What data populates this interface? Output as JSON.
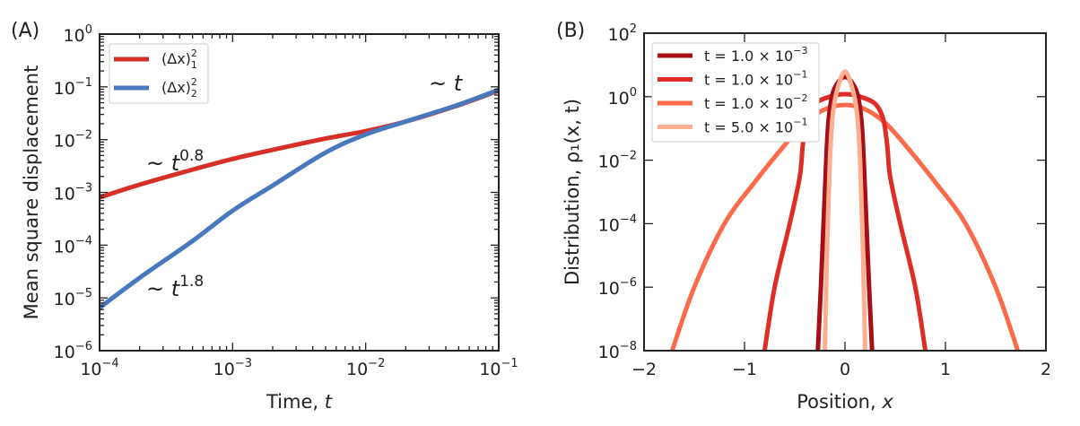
{
  "chart_data": [
    {
      "type": "line",
      "panel_label": "(A)",
      "xlabel": "Time, t",
      "ylabel": "Mean square displacement",
      "xscale": "log",
      "yscale": "log",
      "xlim": [
        0.0001,
        0.1
      ],
      "ylim": [
        1e-06,
        1
      ],
      "grid": false,
      "legend_position": "top-left",
      "x_ticks": [
        {
          "base": "10",
          "exp": "−4",
          "v": 0.0001
        },
        {
          "base": "10",
          "exp": "−3",
          "v": 0.001
        },
        {
          "base": "10",
          "exp": "−2",
          "v": 0.01
        },
        {
          "base": "10",
          "exp": "−1",
          "v": 0.1
        }
      ],
      "y_ticks": [
        {
          "base": "10",
          "exp": "0",
          "v": 1
        },
        {
          "base": "10",
          "exp": "−1",
          "v": 0.1
        },
        {
          "base": "10",
          "exp": "−2",
          "v": 0.01
        },
        {
          "base": "10",
          "exp": "−3",
          "v": 0.001
        },
        {
          "base": "10",
          "exp": "−4",
          "v": 0.0001
        },
        {
          "base": "10",
          "exp": "−5",
          "v": 1e-05
        },
        {
          "base": "10",
          "exp": "−6",
          "v": 1e-06
        }
      ],
      "x": [
        0.0001,
        0.0002,
        0.0005,
        0.001,
        0.002,
        0.005,
        0.01,
        0.02,
        0.05,
        0.1
      ],
      "series": [
        {
          "name": "(Δx)",
          "sub": "1",
          "sup": "2",
          "color": "#d62f27",
          "values": [
            0.0008,
            0.0014,
            0.0027,
            0.0043,
            0.0064,
            0.0105,
            0.0145,
            0.022,
            0.045,
            0.085
          ]
        },
        {
          "name": "(Δx)",
          "sub": "2",
          "sup": "2",
          "color": "#4a78bd",
          "values": [
            6.5e-06,
            2.4e-05,
            0.00012,
            0.00045,
            0.00135,
            0.0057,
            0.0125,
            0.022,
            0.046,
            0.088
          ]
        }
      ],
      "annotations": [
        {
          "text": "~ t",
          "sup": "0.8"
        },
        {
          "text": "~ t",
          "sup": "1.8"
        },
        {
          "text": "~ t",
          "sup": ""
        }
      ]
    },
    {
      "type": "line",
      "panel_label": "(B)",
      "xlabel": "Position, x",
      "ylabel": "Distribution, ρ₁(x, t)",
      "xscale": "linear",
      "yscale": "log",
      "xlim": [
        -2,
        2
      ],
      "ylim": [
        1e-08,
        100
      ],
      "grid": false,
      "legend_position": "top-left",
      "x_ticks": [
        {
          "label": "−2",
          "v": -2
        },
        {
          "label": "−1",
          "v": -1
        },
        {
          "label": "0",
          "v": 0
        },
        {
          "label": "1",
          "v": 1
        },
        {
          "label": "2",
          "v": 2
        }
      ],
      "y_ticks": [
        {
          "base": "10",
          "exp": "2",
          "v": 100
        },
        {
          "base": "10",
          "exp": "0",
          "v": 1
        },
        {
          "base": "10",
          "exp": "−2",
          "v": 0.01
        },
        {
          "base": "10",
          "exp": "−4",
          "v": 0.0001
        },
        {
          "base": "10",
          "exp": "−6",
          "v": 1e-06
        },
        {
          "base": "10",
          "exp": "−8",
          "v": 1e-08
        }
      ],
      "series": [
        {
          "name": "t = 1.0 × 10",
          "exp": "−3",
          "color": "#a50f15",
          "x": [
            -0.27,
            -0.24,
            -0.2,
            -0.17,
            -0.13,
            -0.07,
            0,
            0.07,
            0.13,
            0.17,
            0.2,
            0.24,
            0.27
          ],
          "values": [
            1e-08,
            1e-06,
            0.001,
            0.1,
            1,
            2.8,
            4.2,
            2.8,
            1,
            0.1,
            0.001,
            1e-06,
            1e-08
          ]
        },
        {
          "name": "t = 1.0 × 10",
          "exp": "−1",
          "color": "#de2d26",
          "x": [
            -0.8,
            -0.7,
            -0.55,
            -0.45,
            -0.42,
            -0.38,
            -0.3,
            -0.15,
            0,
            0.15,
            0.3,
            0.38,
            0.42,
            0.45,
            0.55,
            0.7,
            0.8
          ],
          "values": [
            1e-08,
            1e-06,
            0.0001,
            0.003,
            0.03,
            0.2,
            0.6,
            1.0,
            1.2,
            1.0,
            0.6,
            0.2,
            0.03,
            0.003,
            0.0001,
            1e-06,
            1e-08
          ]
        },
        {
          "name": "t = 1.0 × 10",
          "exp": "−2",
          "color": "#fb6a4a",
          "x": [
            -1.72,
            -1.5,
            -1.2,
            -0.9,
            -0.6,
            -0.4,
            -0.2,
            0,
            0.2,
            0.4,
            0.6,
            0.9,
            1.2,
            1.5,
            1.72
          ],
          "values": [
            1e-08,
            1e-06,
            0.0001,
            0.002,
            0.03,
            0.15,
            0.4,
            0.55,
            0.4,
            0.15,
            0.03,
            0.002,
            0.0001,
            1e-06,
            1e-08
          ]
        },
        {
          "name": "t = 5.0 × 10",
          "exp": "−1",
          "color": "#fcae91",
          "x": [
            -0.2,
            -0.18,
            -0.15,
            -0.12,
            -0.07,
            0,
            0.07,
            0.12,
            0.15,
            0.18,
            0.2
          ],
          "values": [
            1e-08,
            1e-05,
            0.01,
            0.3,
            2,
            6.2,
            2,
            0.3,
            0.01,
            1e-05,
            1e-08
          ]
        }
      ]
    }
  ]
}
